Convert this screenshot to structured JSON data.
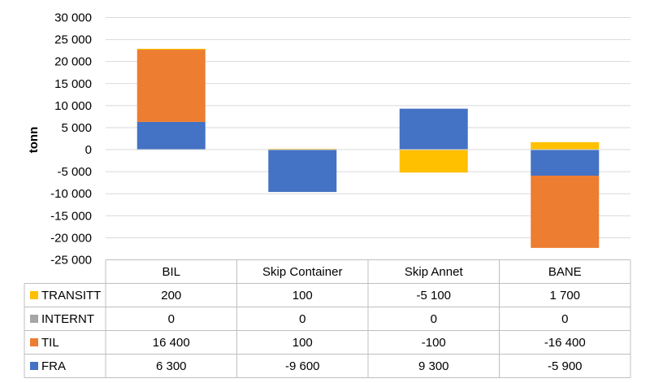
{
  "chart_data": {
    "type": "bar",
    "stacked": true,
    "title": "",
    "xlabel": "",
    "ylabel": "tonn",
    "ylim": [
      -25000,
      30000
    ],
    "ytick_step": 5000,
    "ytick_labels": [
      "30 000",
      "25 000",
      "20 000",
      "15 000",
      "10 000",
      "5 000",
      "0",
      "-5 000",
      "-10 000",
      "-15 000",
      "-20 000",
      "-25 000"
    ],
    "grid": true,
    "legend": "data table",
    "categories": [
      "BIL",
      "Skip Container",
      "Skip Annet",
      "BANE"
    ],
    "series": [
      {
        "name": "TRANSITT",
        "color": "#FFC000",
        "values": [
          200,
          100,
          -5100,
          1700
        ],
        "labels": [
          "200",
          "100",
          "-5 100",
          "1 700"
        ]
      },
      {
        "name": "INTERNT",
        "color": "#A5A5A5",
        "values": [
          0,
          0,
          0,
          0
        ],
        "labels": [
          "0",
          "0",
          "0",
          "0"
        ]
      },
      {
        "name": "TIL",
        "color": "#ED7D31",
        "values": [
          16400,
          100,
          -100,
          -16400
        ],
        "labels": [
          "16 400",
          "100",
          "-100",
          "-16 400"
        ]
      },
      {
        "name": "FRA",
        "color": "#4472C4",
        "values": [
          6300,
          -9600,
          9300,
          -5900
        ],
        "labels": [
          "6 300",
          "-9 600",
          "9 300",
          "-5 900"
        ]
      }
    ]
  }
}
